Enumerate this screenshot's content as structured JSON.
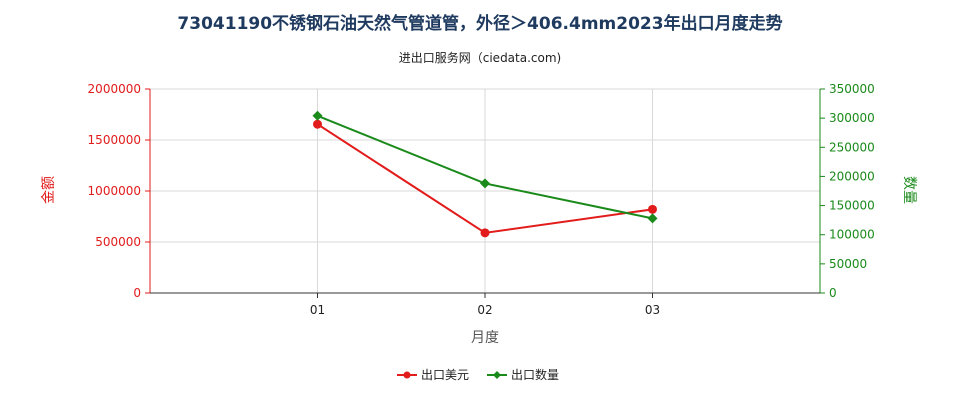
{
  "title": "73041190不锈钢石油天然气管道管，外径＞406.4mm2023年出口月度走势",
  "subtitle": "进出口服务网（ciedata.com)",
  "chart_data": {
    "type": "line",
    "categories": [
      "01",
      "02",
      "03"
    ],
    "xlabel": "月度",
    "ylabel_left": "金额",
    "ylabel_right": "数量",
    "ylim_left": [
      0,
      2000000
    ],
    "ylim_right": [
      0,
      350000
    ],
    "yticks_left": [
      "0",
      "500000",
      "1000000",
      "1500000",
      "2000000"
    ],
    "yticks_right": [
      "0",
      "50000",
      "100000",
      "150000",
      "200000",
      "250000",
      "300000",
      "350000"
    ],
    "grid": true,
    "legend_position": "bottom",
    "series": [
      {
        "name": "出口美元",
        "axis": "left",
        "color": "#e21b1b",
        "marker": "circle",
        "values": [
          1655000,
          590000,
          820000
        ]
      },
      {
        "name": "出口数量",
        "axis": "right",
        "color": "#1a8a1a",
        "marker": "diamond",
        "values": [
          304000,
          188000,
          128000
        ]
      }
    ]
  }
}
